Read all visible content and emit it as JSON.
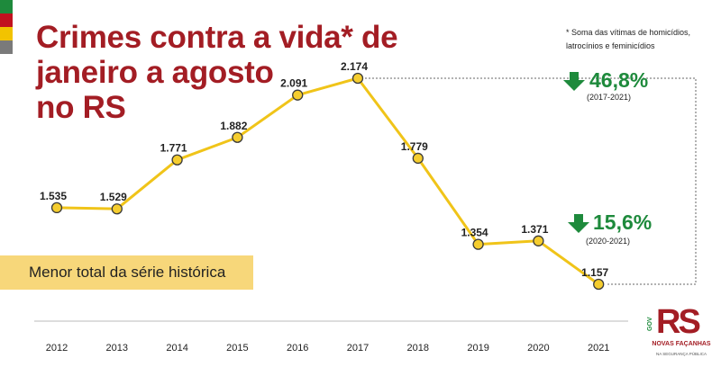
{
  "flag_colors": [
    "#1e8a3c",
    "#c1121f",
    "#f2c300",
    "#7a7a7a"
  ],
  "title_lines": [
    "Crimes contra a vida* de",
    "janeiro a agosto",
    "no RS"
  ],
  "footnote_lines": [
    "* Soma das vítimas de homicídios,",
    "latrocínios e feminicídios"
  ],
  "callouts": [
    {
      "value": "46,8%",
      "range": "(2017-2021)"
    },
    {
      "value": "15,6%",
      "range": "(2020-2021)"
    }
  ],
  "banner_text": "Menor total da série histórica",
  "logo": {
    "gov": "GOV",
    "rs": "RS",
    "name": "NOVAS FAÇANHAS",
    "tagline": "NA SEGURANÇA PÚBLICA"
  },
  "colors": {
    "title": "#a31d24",
    "line": "#f0c419",
    "callout": "#1e8a3c",
    "banner": "#f7d77a"
  },
  "chart_data": {
    "type": "line",
    "title": "Crimes contra a vida* de janeiro a agosto no RS",
    "xlabel": "",
    "ylabel": "",
    "x": [
      "2012",
      "2013",
      "2014",
      "2015",
      "2016",
      "2017",
      "2018",
      "2019",
      "2020",
      "2021"
    ],
    "values": [
      1535,
      1529,
      1771,
      1882,
      2091,
      2174,
      1779,
      1354,
      1371,
      1157
    ],
    "labels": [
      "1.535",
      "1.529",
      "1.771",
      "1.882",
      "2.091",
      "2.174",
      "1.779",
      "1.354",
      "1.371",
      "1.157"
    ],
    "grid": false,
    "legend": "none"
  }
}
